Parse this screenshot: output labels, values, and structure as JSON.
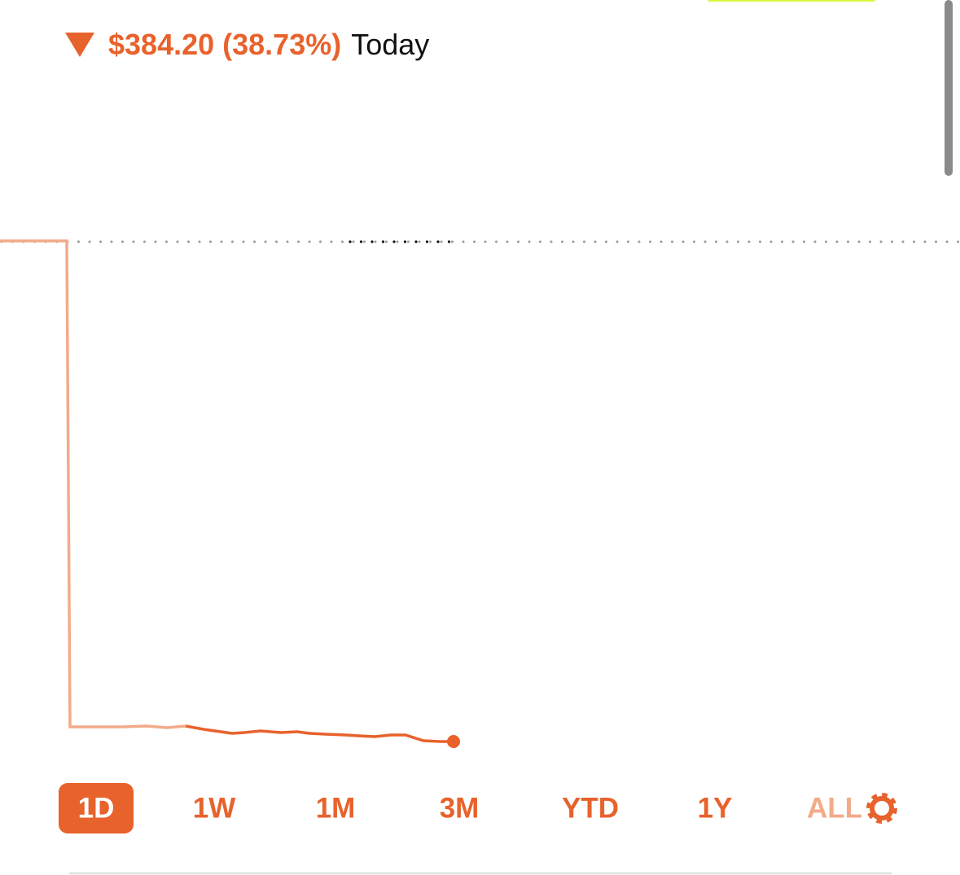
{
  "header": {
    "change": "$384.20 (38.73%)",
    "period": "Today"
  },
  "tabs": {
    "items": [
      "1D",
      "1W",
      "1M",
      "3M",
      "YTD",
      "1Y",
      "ALL"
    ],
    "selected": 0
  }
}
